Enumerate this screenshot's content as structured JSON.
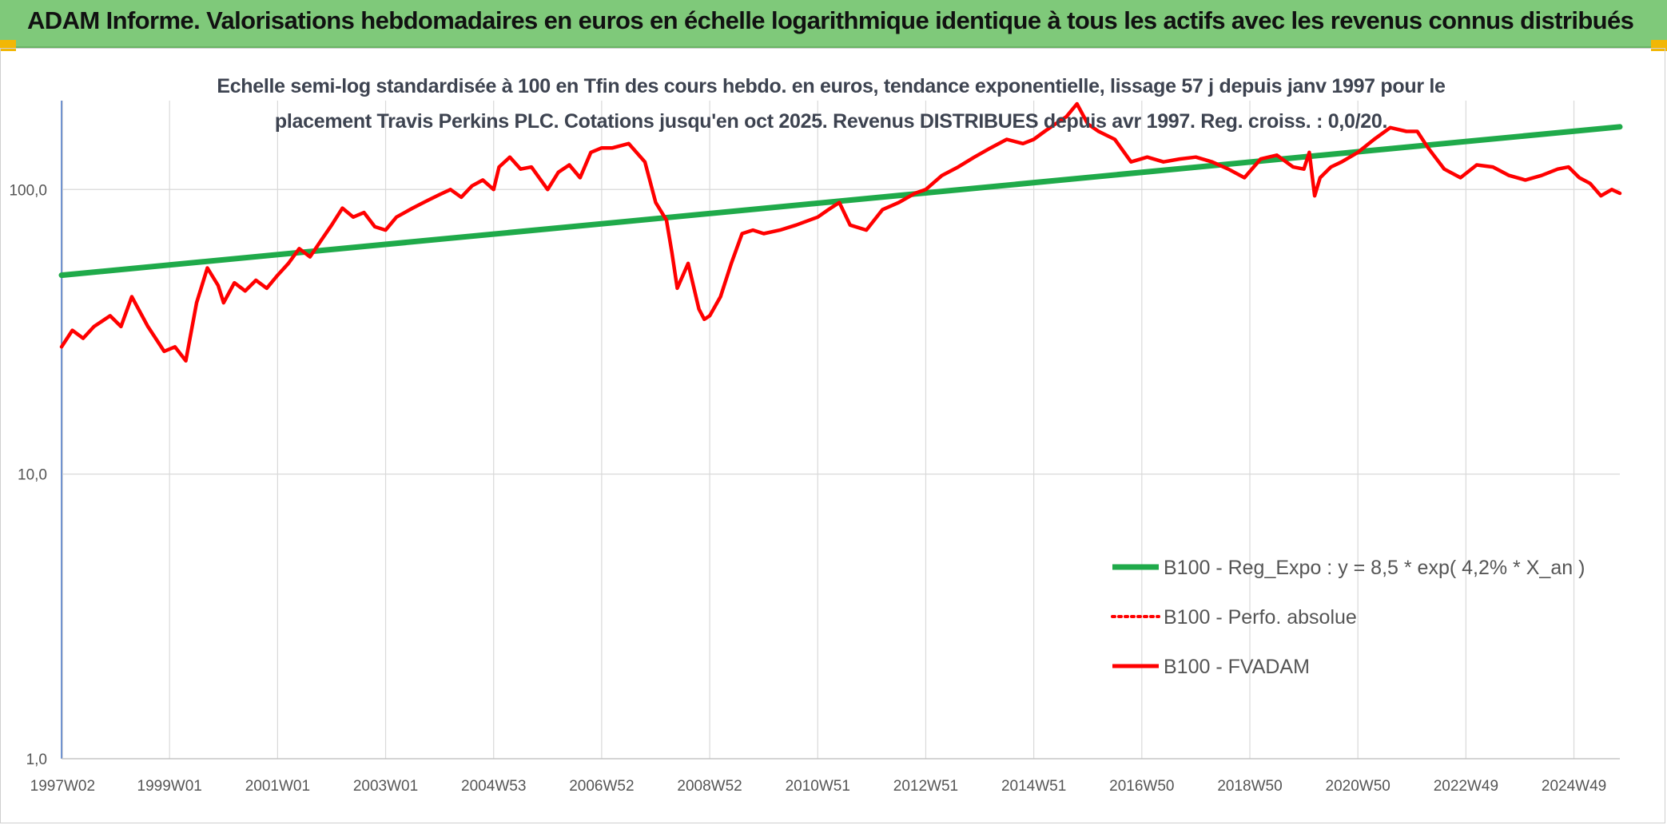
{
  "header": {
    "title": "ADAM Informe. Valorisations hebdomadaires en euros en échelle logarithmique identique à tous les actifs avec les revenus connus distribués"
  },
  "chart_data": {
    "type": "line",
    "title_line1": "Echelle semi-log standardisée à 100 en Tfin des cours hebdo. en euros, tendance exponentielle, lissage 57 j depuis janv 1997 pour le",
    "title_line2": "placement Travis Perkins PLC. Cotations jusqu'en oct 2025. Revenus DISTRIBUES depuis avr 1997. Reg. croiss. : 0,0/20.",
    "y_scale": "log",
    "ylim": [
      1,
      200
    ],
    "y_ticks": [
      {
        "value": 1,
        "label": "1,0"
      },
      {
        "value": 10,
        "label": "10,0"
      },
      {
        "value": 100,
        "label": "100,0"
      }
    ],
    "xlim": [
      1997.0,
      2025.85
    ],
    "x_ticks": [
      {
        "value": 1997.02,
        "label": "1997W02"
      },
      {
        "value": 1999.0,
        "label": "1999W01"
      },
      {
        "value": 2001.0,
        "label": "2001W01"
      },
      {
        "value": 2003.0,
        "label": "2003W01"
      },
      {
        "value": 2005.0,
        "label": "2004W53"
      },
      {
        "value": 2007.0,
        "label": "2006W52"
      },
      {
        "value": 2009.0,
        "label": "2008W52"
      },
      {
        "value": 2011.0,
        "label": "2010W51"
      },
      {
        "value": 2013.0,
        "label": "2012W51"
      },
      {
        "value": 2015.0,
        "label": "2014W51"
      },
      {
        "value": 2017.0,
        "label": "2016W50"
      },
      {
        "value": 2019.0,
        "label": "2018W50"
      },
      {
        "value": 2021.0,
        "label": "2020W50"
      },
      {
        "value": 2023.0,
        "label": "2022W49"
      },
      {
        "value": 2025.0,
        "label": "2024W49"
      }
    ],
    "grid": true,
    "legend_position": "bottom-right",
    "legend": [
      {
        "label": "B100 - Reg_Expo : y = 8,5 * exp( 4,2% *  X_an )",
        "color": "#1faa4a",
        "style": "solid-thick"
      },
      {
        "label": "B100 - Perfo. absolue",
        "color": "#ff0000",
        "style": "dotted"
      },
      {
        "label": "B100 - FVADAM",
        "color": "#ff0000",
        "style": "solid"
      }
    ],
    "series": [
      {
        "name": "B100 - Reg_Expo : y = 8,5 * exp( 4,2% *  X_an )",
        "color": "#1faa4a",
        "x": [
          1997.0,
          2025.85
        ],
        "y": [
          50,
          166
        ]
      },
      {
        "name": "B100 - FVADAM",
        "color": "#ff0000",
        "x": [
          1997.0,
          1997.2,
          1997.4,
          1997.6,
          1997.9,
          1998.1,
          1998.3,
          1998.6,
          1998.9,
          1999.1,
          1999.3,
          1999.5,
          1999.7,
          1999.9,
          2000.0,
          2000.2,
          2000.4,
          2000.6,
          2000.8,
          2001.0,
          2001.2,
          2001.4,
          2001.6,
          2001.8,
          2002.0,
          2002.2,
          2002.4,
          2002.6,
          2002.8,
          2003.0,
          2003.2,
          2003.5,
          2003.8,
          2004.0,
          2004.2,
          2004.4,
          2004.6,
          2004.8,
          2005.0,
          2005.1,
          2005.3,
          2005.5,
          2005.7,
          2006.0,
          2006.2,
          2006.4,
          2006.6,
          2006.8,
          2007.0,
          2007.2,
          2007.5,
          2007.8,
          2008.0,
          2008.2,
          2008.3,
          2008.4,
          2008.6,
          2008.8,
          2008.9,
          2009.0,
          2009.2,
          2009.4,
          2009.6,
          2009.8,
          2010.0,
          2010.3,
          2010.6,
          2011.0,
          2011.2,
          2011.4,
          2011.6,
          2011.9,
          2012.2,
          2012.5,
          2012.8,
          2013.0,
          2013.3,
          2013.6,
          2013.9,
          2014.2,
          2014.5,
          2014.8,
          2015.0,
          2015.2,
          2015.4,
          2015.6,
          2015.8,
          2016.0,
          2016.2,
          2016.5,
          2016.8,
          2017.1,
          2017.4,
          2017.7,
          2018.0,
          2018.3,
          2018.6,
          2018.9,
          2019.2,
          2019.5,
          2019.8,
          2020.0,
          2020.1,
          2020.2,
          2020.3,
          2020.5,
          2020.7,
          2021.0,
          2021.3,
          2021.6,
          2021.9,
          2022.1,
          2022.3,
          2022.6,
          2022.9,
          2023.2,
          2023.5,
          2023.8,
          2024.1,
          2024.4,
          2024.7,
          2024.9,
          2025.1,
          2025.3,
          2025.5,
          2025.7,
          2025.85
        ],
        "y": [
          28,
          32,
          30,
          33,
          36,
          33,
          42,
          33,
          27,
          28,
          25,
          40,
          53,
          46,
          40,
          47,
          44,
          48,
          45,
          50,
          55,
          62,
          58,
          66,
          75,
          86,
          80,
          83,
          74,
          72,
          80,
          86,
          92,
          96,
          100,
          94,
          103,
          108,
          100,
          120,
          130,
          118,
          120,
          100,
          115,
          122,
          110,
          135,
          140,
          140,
          145,
          125,
          90,
          78,
          60,
          45,
          55,
          38,
          35,
          36,
          42,
          55,
          70,
          72,
          70,
          72,
          75,
          80,
          85,
          90,
          75,
          72,
          85,
          90,
          97,
          100,
          112,
          120,
          130,
          140,
          150,
          145,
          150,
          160,
          170,
          180,
          200,
          170,
          160,
          150,
          125,
          130,
          125,
          128,
          130,
          125,
          118,
          110,
          128,
          132,
          120,
          118,
          135,
          95,
          110,
          120,
          125,
          135,
          150,
          165,
          160,
          160,
          140,
          118,
          110,
          122,
          120,
          112,
          108,
          112,
          118,
          120,
          110,
          105,
          95,
          100,
          97
        ]
      }
    ]
  }
}
